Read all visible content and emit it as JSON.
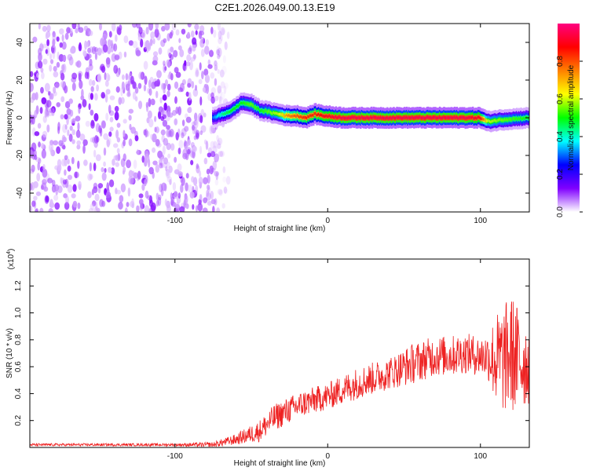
{
  "figure": {
    "title": "C2E1.2026.049.00.13.E19"
  },
  "chart_data": [
    {
      "type": "heatmap",
      "xlabel": "Height of straight line (km)",
      "ylabel": "Frequency (Hz)",
      "xlim": [
        -195,
        132
      ],
      "ylim": [
        -50,
        50
      ],
      "x_ticks": [
        -100,
        0,
        100
      ],
      "y_ticks": [
        -40,
        -20,
        0,
        20,
        40
      ],
      "colorbar": {
        "label": "Normalized spectral amplitude",
        "range": [
          0,
          1
        ],
        "ticks": [
          "0.0",
          "0.2",
          "0.4",
          "0.6",
          "0.8"
        ],
        "colormap": [
          "#ffffff",
          "#8000ff",
          "#0000ff",
          "#00ffff",
          "#00ff00",
          "#ffff00",
          "#ff8000",
          "#ff0000",
          "#ff0080"
        ]
      },
      "noise_region_x": [
        -195,
        -65
      ],
      "signal_ridge": {
        "x": [
          -75,
          -68,
          -62,
          -56,
          -50,
          -44,
          -38,
          -32,
          -26,
          -20,
          -14,
          -8,
          -2,
          10,
          30,
          60,
          90,
          100,
          105,
          115,
          132
        ],
        "freq": [
          0,
          2,
          4,
          8,
          7,
          4,
          3,
          2,
          1,
          1,
          0,
          2,
          1,
          0,
          0,
          0,
          0,
          0,
          -2,
          -1,
          0
        ],
        "peak_amplitude": [
          0.3,
          0.45,
          0.5,
          0.5,
          0.55,
          0.5,
          0.55,
          0.6,
          0.75,
          0.8,
          0.85,
          0.85,
          0.9,
          0.95,
          0.95,
          0.95,
          0.95,
          0.9,
          0.6,
          0.55,
          0.5
        ]
      }
    },
    {
      "type": "line",
      "xlabel": "Height of straight line (km)",
      "ylabel": "SNR (10 * v/v)",
      "y_multiplier": "(x10",
      "y_multiplier_exp": "4",
      "y_multiplier_close": ")",
      "xlim": [
        -195,
        132
      ],
      "ylim": [
        0,
        1.4
      ],
      "x_ticks": [
        -100,
        0,
        100
      ],
      "y_ticks": [
        "0.2",
        "0.4",
        "0.6",
        "0.8",
        "1.0",
        "1.2"
      ],
      "series": [
        {
          "color": "#ee2222",
          "x": [
            -195,
            -150,
            -100,
            -75,
            -60,
            -45,
            -35,
            -25,
            -15,
            0,
            20,
            40,
            55,
            70,
            80,
            90,
            100,
            105,
            110,
            115,
            120,
            125,
            132
          ],
          "y": [
            0.02,
            0.02,
            0.02,
            0.02,
            0.06,
            0.12,
            0.22,
            0.28,
            0.33,
            0.38,
            0.48,
            0.55,
            0.62,
            0.68,
            0.68,
            0.7,
            0.68,
            0.68,
            0.65,
            0.65,
            0.7,
            0.65,
            0.62
          ],
          "spread": [
            0.01,
            0.01,
            0.01,
            0.02,
            0.04,
            0.08,
            0.1,
            0.1,
            0.1,
            0.1,
            0.12,
            0.12,
            0.15,
            0.15,
            0.15,
            0.15,
            0.15,
            0.18,
            0.35,
            0.4,
            0.45,
            0.4,
            0.3
          ]
        }
      ]
    }
  ]
}
